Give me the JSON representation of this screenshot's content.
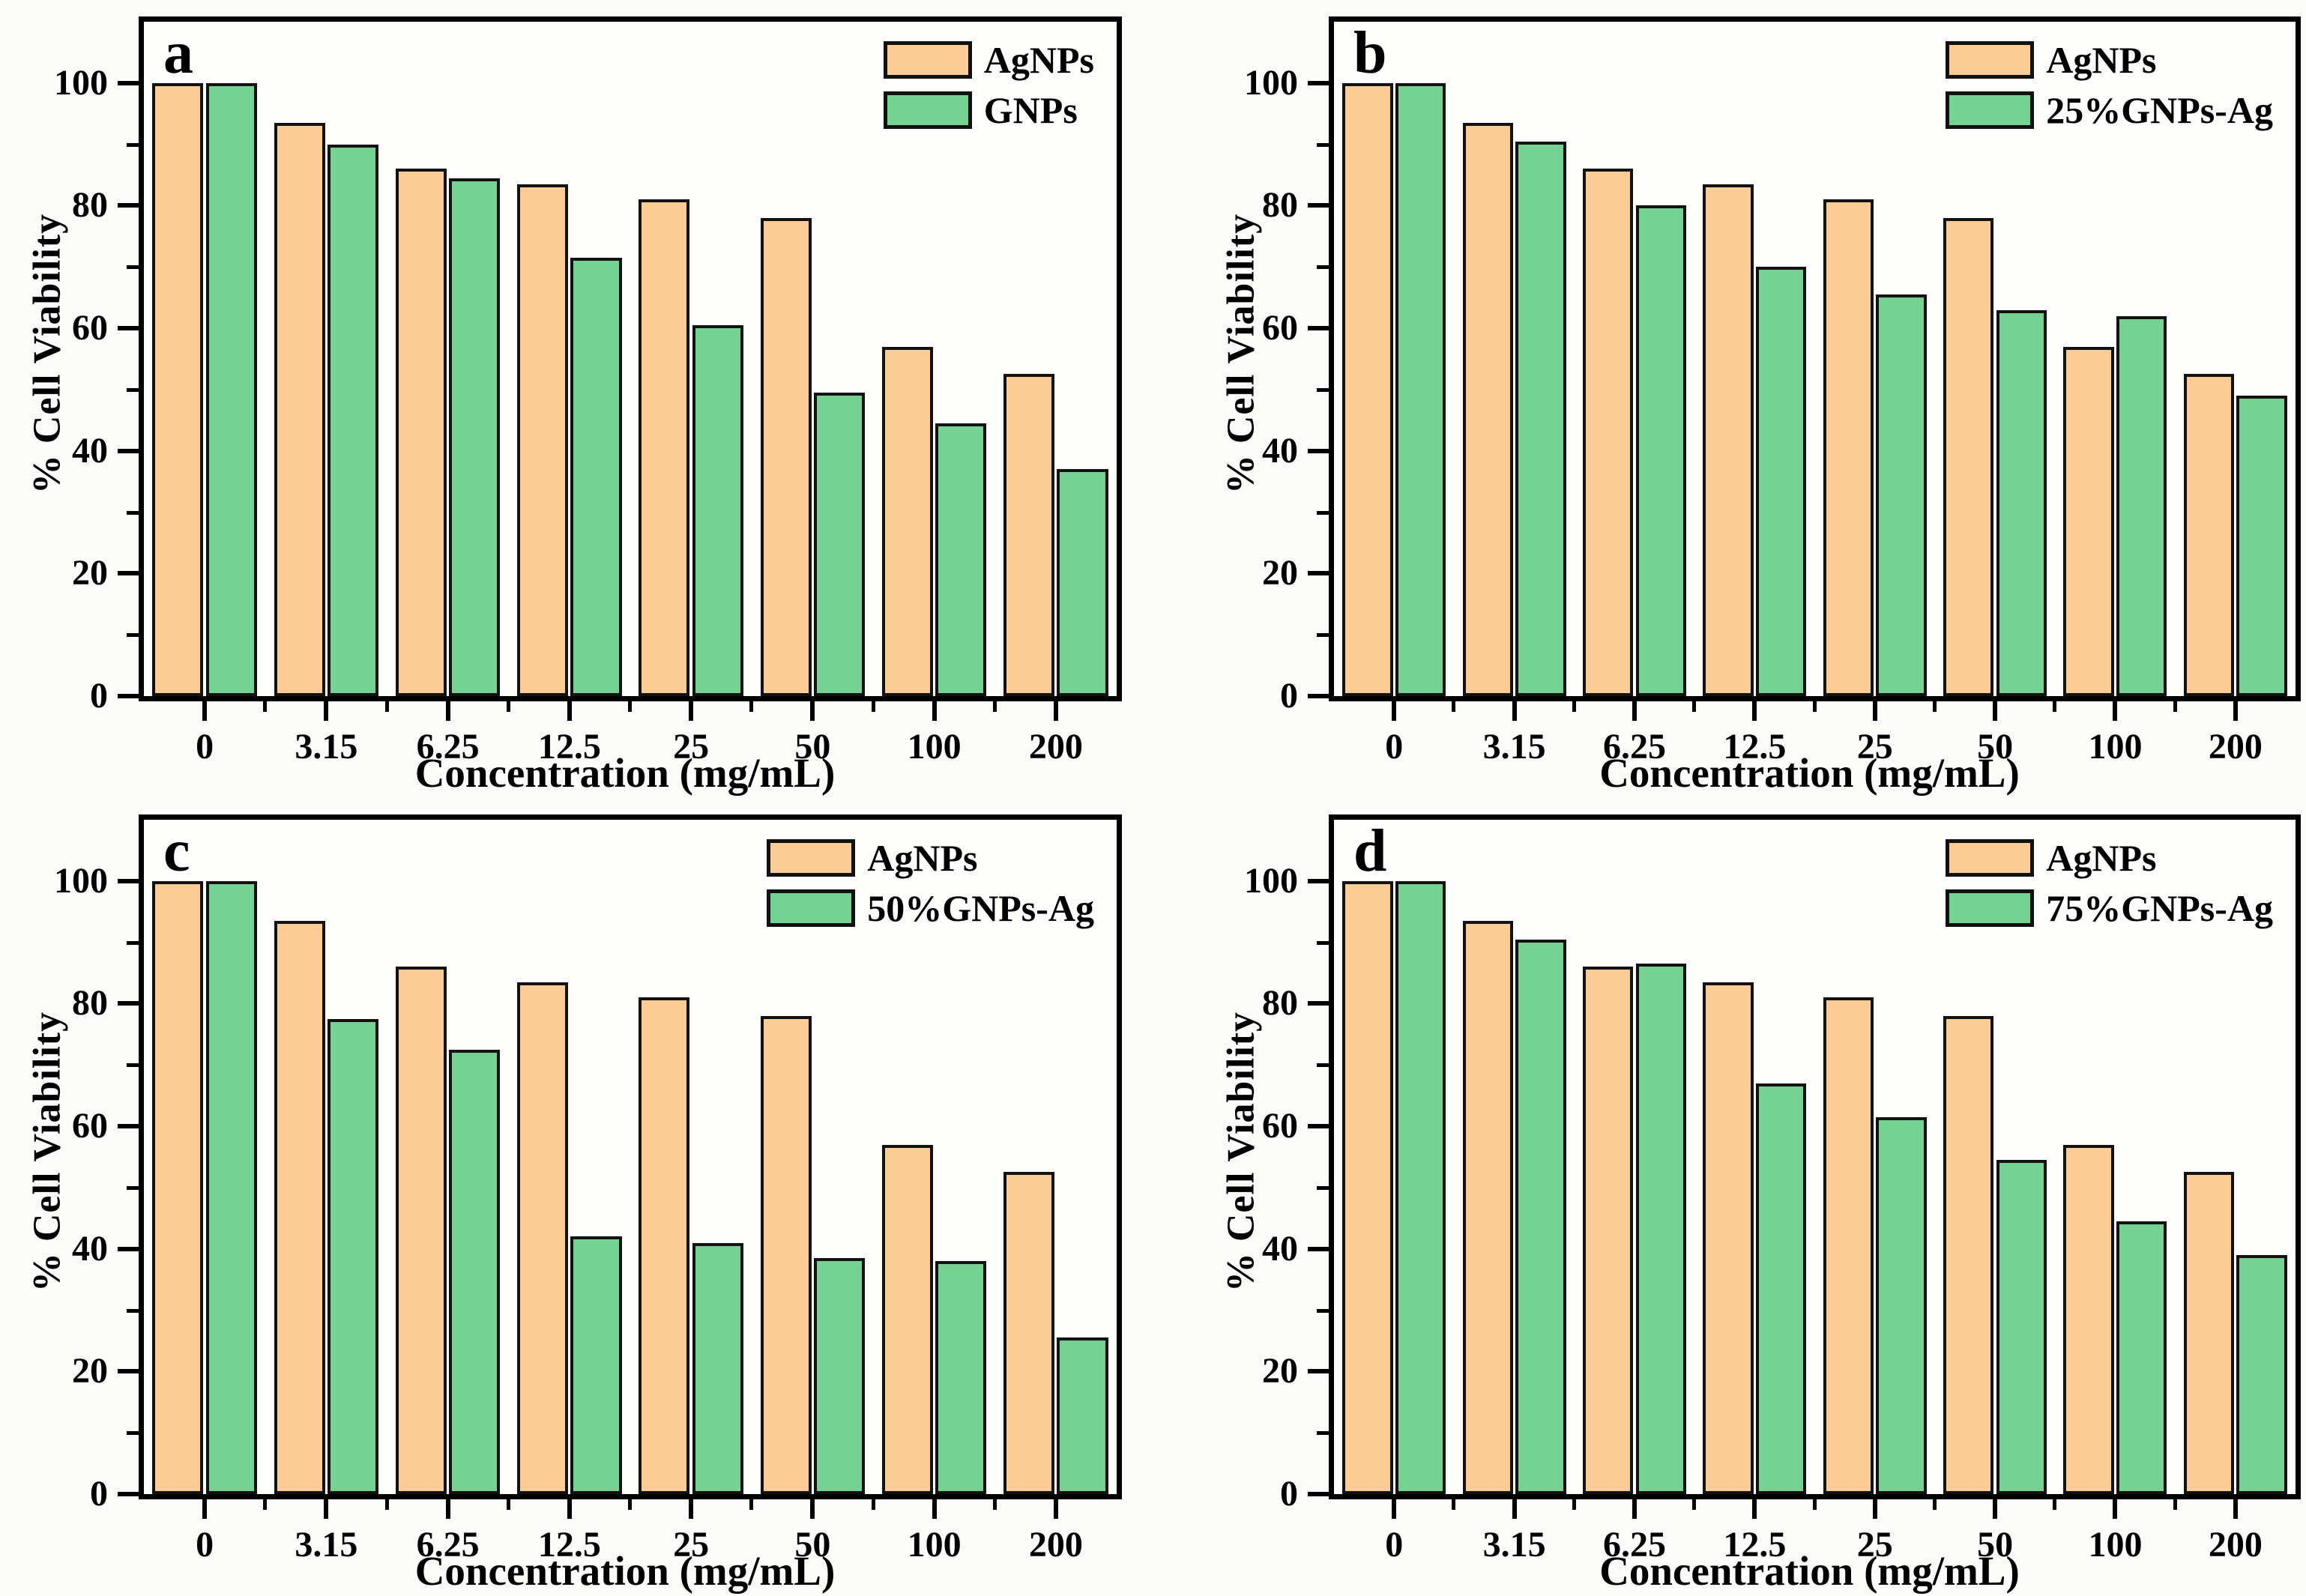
{
  "figure": {
    "description": "Four-panel grouped bar charts of % cell viability versus concentration for AgNPs compared with GNPs composites",
    "panels": [
      "a",
      "b",
      "c",
      "d"
    ]
  },
  "colors": {
    "agnps_fill": "#FBCC95",
    "gnps_fill": "#75D293",
    "bar_border": "#121212",
    "axis": "#000000",
    "plot_background": "#fdfdfb"
  },
  "chart_data": [
    {
      "type": "bar",
      "panel_label": "a",
      "xlabel": "Concentration (mg/mL)",
      "ylabel": "% Cell Viability",
      "categories": [
        "0",
        "3.15",
        "6.25",
        "12.5",
        "25",
        "50",
        "100",
        "200"
      ],
      "series": [
        {
          "name": "AgNPs",
          "color": "#FBCC95",
          "values": [
            100,
            93.5,
            86,
            83.5,
            81,
            78,
            57,
            52.5
          ]
        },
        {
          "name": "GNPs",
          "color": "#75D293",
          "values": [
            100,
            90,
            84.5,
            71.5,
            60.5,
            49.5,
            44.5,
            37
          ]
        }
      ],
      "ylim": [
        0,
        110
      ],
      "yticks": [
        0,
        20,
        40,
        60,
        80,
        100
      ],
      "yticks_minor": [
        10,
        30,
        50,
        70,
        90
      ],
      "legend_position": "top-right",
      "grid": false
    },
    {
      "type": "bar",
      "panel_label": "b",
      "xlabel": "Concentration (mg/mL)",
      "ylabel": "% Cell Viability",
      "categories": [
        "0",
        "3.15",
        "6.25",
        "12.5",
        "25",
        "50",
        "100",
        "200"
      ],
      "series": [
        {
          "name": "AgNPs",
          "color": "#FBCC95",
          "values": [
            100,
            93.5,
            86,
            83.5,
            81,
            78,
            57,
            52.5
          ]
        },
        {
          "name": "25%GNPs-Ag",
          "color": "#75D293",
          "values": [
            100,
            90.5,
            80,
            70,
            65.5,
            63,
            62,
            49
          ]
        }
      ],
      "ylim": [
        0,
        110
      ],
      "yticks": [
        0,
        20,
        40,
        60,
        80,
        100
      ],
      "yticks_minor": [
        10,
        30,
        50,
        70,
        90
      ],
      "legend_position": "top-right",
      "grid": false
    },
    {
      "type": "bar",
      "panel_label": "c",
      "xlabel": "Concentration (mg/mL)",
      "ylabel": "% Cell Viability",
      "categories": [
        "0",
        "3.15",
        "6.25",
        "12.5",
        "25",
        "50",
        "100",
        "200"
      ],
      "series": [
        {
          "name": "AgNPs",
          "color": "#FBCC95",
          "values": [
            100,
            93.5,
            86,
            83.5,
            81,
            78,
            57,
            52.5
          ]
        },
        {
          "name": "50%GNPs-Ag",
          "color": "#75D293",
          "values": [
            100,
            77.5,
            72.5,
            42,
            41,
            38.5,
            38,
            25.5
          ]
        }
      ],
      "ylim": [
        0,
        110
      ],
      "yticks": [
        0,
        20,
        40,
        60,
        80,
        100
      ],
      "yticks_minor": [
        10,
        30,
        50,
        70,
        90
      ],
      "legend_position": "top-right",
      "grid": false
    },
    {
      "type": "bar",
      "panel_label": "d",
      "xlabel": "Concentration (mg/mL)",
      "ylabel": "% Cell Viability",
      "categories": [
        "0",
        "3.15",
        "6.25",
        "12.5",
        "25",
        "50",
        "100",
        "200"
      ],
      "series": [
        {
          "name": "AgNPs",
          "color": "#FBCC95",
          "values": [
            100,
            93.5,
            86,
            83.5,
            81,
            78,
            57,
            52.5
          ]
        },
        {
          "name": "75%GNPs-Ag",
          "color": "#75D293",
          "values": [
            100,
            90.5,
            86.5,
            67,
            61.5,
            54.5,
            44.5,
            39
          ]
        }
      ],
      "ylim": [
        0,
        110
      ],
      "yticks": [
        0,
        20,
        40,
        60,
        80,
        100
      ],
      "yticks_minor": [
        10,
        30,
        50,
        70,
        90
      ],
      "legend_position": "top-right",
      "grid": false
    }
  ]
}
